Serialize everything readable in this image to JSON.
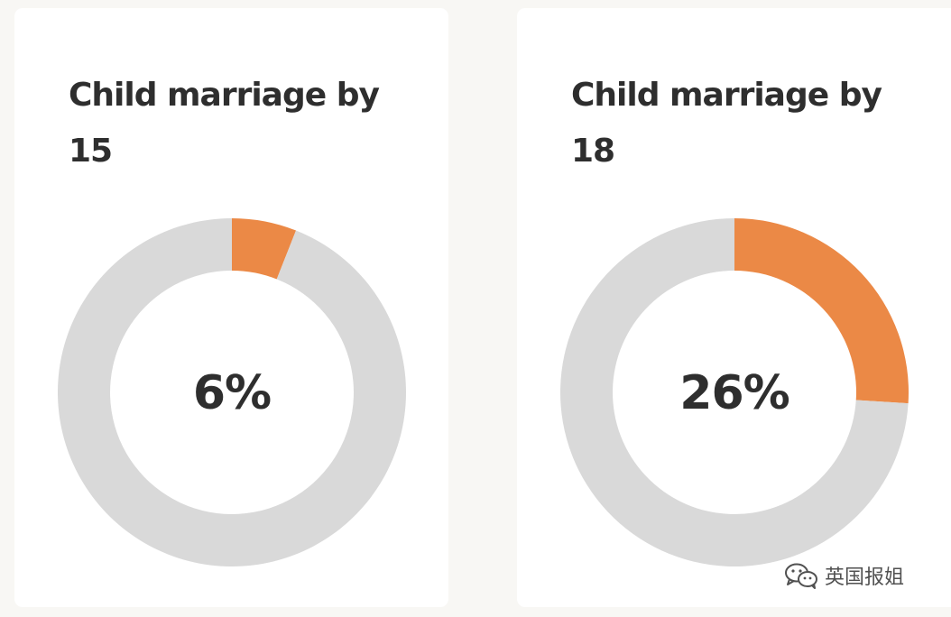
{
  "colors": {
    "filled": "#eb8946",
    "remainder": "#d9d9d9"
  },
  "chart_data": [
    {
      "type": "pie",
      "title": "Child marriage by 15",
      "slices": [
        {
          "label": "",
          "value": 6
        },
        {
          "label": "",
          "value": 94
        }
      ],
      "center_label": "6%"
    },
    {
      "type": "pie",
      "title": "Child marriage by 18",
      "slices": [
        {
          "label": "",
          "value": 26
        },
        {
          "label": "",
          "value": 74
        }
      ],
      "center_label": "26%"
    }
  ],
  "watermark": {
    "icon": "wechat-icon",
    "text": "英国报姐"
  }
}
